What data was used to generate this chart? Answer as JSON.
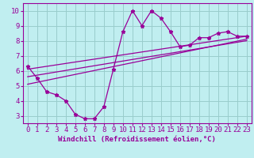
{
  "xlabel": "Windchill (Refroidissement éolien,°C)",
  "bg_color": "#c0eef0",
  "line_color": "#990099",
  "grid_color": "#99cccc",
  "xlim": [
    -0.5,
    23.5
  ],
  "ylim": [
    2.5,
    10.5
  ],
  "xticks": [
    0,
    1,
    2,
    3,
    4,
    5,
    6,
    7,
    8,
    9,
    10,
    11,
    12,
    13,
    14,
    15,
    16,
    17,
    18,
    19,
    20,
    21,
    22,
    23
  ],
  "yticks": [
    3,
    4,
    5,
    6,
    7,
    8,
    9,
    10
  ],
  "data_x": [
    0,
    1,
    2,
    3,
    4,
    5,
    6,
    7,
    8,
    9,
    10,
    11,
    12,
    13,
    14,
    15,
    16,
    17,
    18,
    19,
    20,
    21,
    22,
    23
  ],
  "data_y": [
    6.3,
    5.5,
    4.6,
    4.4,
    4.0,
    3.1,
    2.8,
    2.8,
    3.6,
    6.1,
    8.6,
    10.0,
    9.0,
    10.0,
    9.5,
    8.6,
    7.6,
    7.7,
    8.2,
    8.2,
    8.5,
    8.6,
    8.3,
    8.3
  ],
  "reg_line1_x": [
    0,
    23
  ],
  "reg_line1_y": [
    6.1,
    8.3
  ],
  "reg_line2_x": [
    0,
    23
  ],
  "reg_line2_y": [
    5.1,
    8.1
  ],
  "reg_line3_x": [
    0,
    23
  ],
  "reg_line3_y": [
    5.6,
    8.0
  ],
  "tick_fontsize": 6.5,
  "label_fontsize": 6.5
}
